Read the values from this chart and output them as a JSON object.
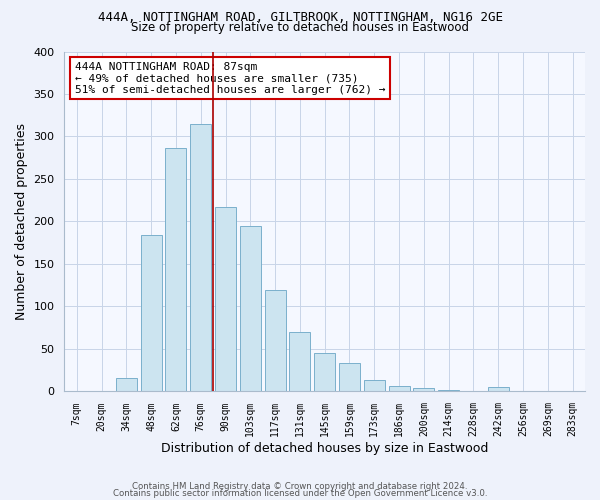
{
  "title1": "444A, NOTTINGHAM ROAD, GILTBROOK, NOTTINGHAM, NG16 2GE",
  "title2": "Size of property relative to detached houses in Eastwood",
  "xlabel": "Distribution of detached houses by size in Eastwood",
  "ylabel": "Number of detached properties",
  "bar_labels": [
    "7sqm",
    "20sqm",
    "34sqm",
    "48sqm",
    "62sqm",
    "76sqm",
    "90sqm",
    "103sqm",
    "117sqm",
    "131sqm",
    "145sqm",
    "159sqm",
    "173sqm",
    "186sqm",
    "200sqm",
    "214sqm",
    "228sqm",
    "242sqm",
    "256sqm",
    "269sqm",
    "283sqm"
  ],
  "bar_values": [
    0,
    0,
    16,
    184,
    286,
    315,
    217,
    195,
    119,
    70,
    45,
    33,
    13,
    7,
    4,
    2,
    0,
    5,
    0,
    0,
    0
  ],
  "bar_color": "#cce4f0",
  "bar_edge_color": "#7ab0cc",
  "vline_x_index": 6,
  "vline_color": "#aa0000",
  "ylim": [
    0,
    400
  ],
  "yticks": [
    0,
    50,
    100,
    150,
    200,
    250,
    300,
    350,
    400
  ],
  "annotation_title": "444A NOTTINGHAM ROAD: 87sqm",
  "annotation_line1": "← 49% of detached houses are smaller (735)",
  "annotation_line2": "51% of semi-detached houses are larger (762) →",
  "footer1": "Contains HM Land Registry data © Crown copyright and database right 2024.",
  "footer2": "Contains public sector information licensed under the Open Government Licence v3.0.",
  "bg_color": "#eef2fb",
  "plot_bg_color": "#f5f8ff",
  "grid_color": "#c8d4e8"
}
